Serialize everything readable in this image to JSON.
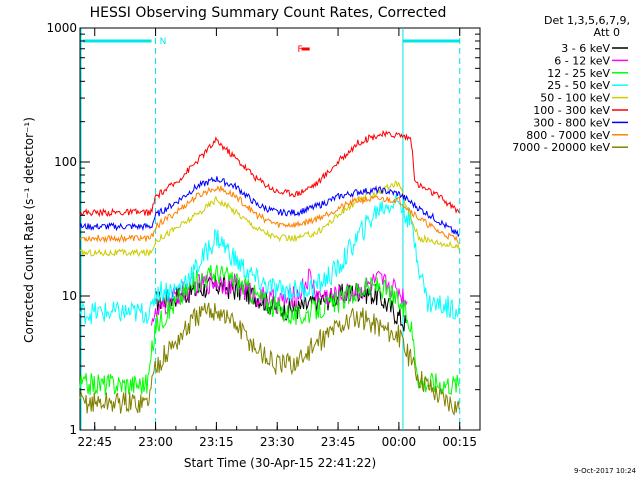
{
  "chart_data": {
    "type": "line",
    "title": "HESSI Observing Summary Count Rates, Corrected",
    "xlabel": "Start Time (30-Apr-15 22:41:22)",
    "ylabel": "Corrected Count Rate (s⁻¹ detector⁻¹)",
    "y_scale": "log",
    "ylim": [
      1,
      1000
    ],
    "xlim": [
      "22:41:22",
      "00:20:00"
    ],
    "grid": false,
    "legend_position": "right-outside",
    "x_ticks": [
      "22:45",
      "23:00",
      "23:15",
      "23:30",
      "23:45",
      "00:00",
      "00:15"
    ],
    "y_ticks": [
      "1",
      "10",
      "100",
      "1000"
    ],
    "legend_header": [
      "Det 1,3,5,6,7,9,",
      "Att 0"
    ],
    "annotations": [
      {
        "text": "N",
        "x": "23:01",
        "color": "#00e5e5"
      },
      {
        "text": "F",
        "x": "23:35",
        "color": "#ff0000"
      }
    ],
    "night_bars": [
      [
        "22:42",
        "22:59"
      ],
      [
        "00:01",
        "00:15"
      ]
    ],
    "flare_bar": [
      "23:36",
      "23:38"
    ],
    "vertical_lines": [
      {
        "x": "23:00",
        "style": "dashed"
      },
      {
        "x": "00:01",
        "style": "solid"
      },
      {
        "x": "00:15",
        "style": "dashed"
      }
    ],
    "series": [
      {
        "name": "3 - 6 keV",
        "color": "#000000",
        "points": [
          [
            "23:00",
            9
          ],
          [
            "23:05",
            10
          ],
          [
            "23:10",
            11
          ],
          [
            "23:15",
            12
          ],
          [
            "23:20",
            11
          ],
          [
            "23:25",
            10
          ],
          [
            "23:30",
            8
          ],
          [
            "23:35",
            8
          ],
          [
            "23:40",
            9
          ],
          [
            "23:45",
            10
          ],
          [
            "23:50",
            11
          ],
          [
            "23:55",
            10
          ],
          [
            "00:00",
            7
          ],
          [
            "00:02",
            6
          ]
        ]
      },
      {
        "name": "6 - 12 keV",
        "color": "#ff00ff",
        "points": [
          [
            "22:59",
            7
          ],
          [
            "23:00",
            7
          ],
          [
            "23:05",
            10
          ],
          [
            "23:10",
            12
          ],
          [
            "23:15",
            13
          ],
          [
            "23:20",
            12
          ],
          [
            "23:25",
            10
          ],
          [
            "23:30",
            9
          ],
          [
            "23:35",
            10
          ],
          [
            "23:38",
            14
          ],
          [
            "23:40",
            10
          ],
          [
            "23:45",
            10
          ],
          [
            "23:50",
            11
          ],
          [
            "23:55",
            13
          ],
          [
            "00:00",
            11
          ],
          [
            "00:02",
            9
          ]
        ]
      },
      {
        "name": "12 - 25 keV",
        "color": "#00ff00",
        "points": [
          [
            "22:41:22",
            2.2
          ],
          [
            "22:58",
            2.2
          ],
          [
            "23:00",
            6
          ],
          [
            "23:05",
            9
          ],
          [
            "23:10",
            13
          ],
          [
            "23:15",
            15
          ],
          [
            "23:20",
            13
          ],
          [
            "23:25",
            10
          ],
          [
            "23:30",
            8
          ],
          [
            "23:35",
            7
          ],
          [
            "23:40",
            8
          ],
          [
            "23:45",
            9
          ],
          [
            "23:50",
            11
          ],
          [
            "23:55",
            12
          ],
          [
            "00:00",
            9
          ],
          [
            "00:03",
            6
          ],
          [
            "00:05",
            2.3
          ],
          [
            "00:15",
            2.2
          ]
        ]
      },
      {
        "name": "25 - 50 keV",
        "color": "#00ffff",
        "points": [
          [
            "22:41:22",
            7.5
          ],
          [
            "22:59",
            7.5
          ],
          [
            "23:00",
            11
          ],
          [
            "23:05",
            11
          ],
          [
            "23:10",
            16
          ],
          [
            "23:15",
            28
          ],
          [
            "23:20",
            18
          ],
          [
            "23:25",
            13
          ],
          [
            "23:30",
            11
          ],
          [
            "23:35",
            11
          ],
          [
            "23:40",
            12
          ],
          [
            "23:45",
            16
          ],
          [
            "23:50",
            28
          ],
          [
            "23:55",
            45
          ],
          [
            "00:00",
            52
          ],
          [
            "00:03",
            35
          ],
          [
            "00:05",
            17
          ],
          [
            "00:07",
            9
          ],
          [
            "00:15",
            8
          ]
        ]
      },
      {
        "name": "50 - 100 keV",
        "color": "#cccc00",
        "points": [
          [
            "22:41:22",
            21
          ],
          [
            "22:59",
            21
          ],
          [
            "23:00",
            26
          ],
          [
            "23:05",
            32
          ],
          [
            "23:10",
            40
          ],
          [
            "23:15",
            53
          ],
          [
            "23:20",
            42
          ],
          [
            "23:25",
            32
          ],
          [
            "23:30",
            27
          ],
          [
            "23:35",
            27
          ],
          [
            "23:40",
            30
          ],
          [
            "23:45",
            40
          ],
          [
            "23:50",
            52
          ],
          [
            "23:55",
            60
          ],
          [
            "00:00",
            70
          ],
          [
            "00:02",
            45
          ],
          [
            "00:05",
            27
          ],
          [
            "00:10",
            25
          ],
          [
            "00:15",
            23
          ]
        ]
      },
      {
        "name": "100 - 300 keV",
        "color": "#ff0000",
        "points": [
          [
            "22:41:22",
            42
          ],
          [
            "22:59",
            42
          ],
          [
            "23:00",
            55
          ],
          [
            "23:05",
            70
          ],
          [
            "23:10",
            100
          ],
          [
            "23:15",
            145
          ],
          [
            "23:20",
            105
          ],
          [
            "23:25",
            75
          ],
          [
            "23:30",
            60
          ],
          [
            "23:35",
            58
          ],
          [
            "23:40",
            70
          ],
          [
            "23:45",
            100
          ],
          [
            "23:50",
            140
          ],
          [
            "23:55",
            160
          ],
          [
            "00:00",
            160
          ],
          [
            "00:03",
            150
          ],
          [
            "00:04",
            70
          ],
          [
            "00:10",
            55
          ],
          [
            "00:15",
            42
          ]
        ]
      },
      {
        "name": "300 - 800 keV",
        "color": "#0000ff",
        "points": [
          [
            "22:41:22",
            33
          ],
          [
            "22:59",
            33
          ],
          [
            "23:00",
            40
          ],
          [
            "23:05",
            50
          ],
          [
            "23:10",
            65
          ],
          [
            "23:15",
            75
          ],
          [
            "23:20",
            65
          ],
          [
            "23:25",
            48
          ],
          [
            "23:30",
            42
          ],
          [
            "23:35",
            42
          ],
          [
            "23:40",
            47
          ],
          [
            "23:45",
            55
          ],
          [
            "23:50",
            60
          ],
          [
            "23:55",
            62
          ],
          [
            "00:00",
            58
          ],
          [
            "00:05",
            45
          ],
          [
            "00:10",
            36
          ],
          [
            "00:15",
            28
          ]
        ]
      },
      {
        "name": "800 - 7000 keV",
        "color": "#ff8000",
        "points": [
          [
            "22:41:22",
            27
          ],
          [
            "22:59",
            27
          ],
          [
            "23:00",
            33
          ],
          [
            "23:05",
            42
          ],
          [
            "23:10",
            55
          ],
          [
            "23:15",
            65
          ],
          [
            "23:20",
            55
          ],
          [
            "23:25",
            40
          ],
          [
            "23:30",
            34
          ],
          [
            "23:35",
            34
          ],
          [
            "23:40",
            38
          ],
          [
            "23:45",
            45
          ],
          [
            "23:50",
            52
          ],
          [
            "23:55",
            53
          ],
          [
            "00:00",
            52
          ],
          [
            "00:05",
            38
          ],
          [
            "00:10",
            30
          ],
          [
            "00:15",
            26
          ]
        ]
      },
      {
        "name": "7000 - 20000 keV",
        "color": "#808000",
        "points": [
          [
            "22:41:22",
            1.6
          ],
          [
            "22:58",
            1.6
          ],
          [
            "23:00",
            3
          ],
          [
            "23:05",
            4.5
          ],
          [
            "23:10",
            7
          ],
          [
            "23:15",
            8
          ],
          [
            "23:20",
            6
          ],
          [
            "23:25",
            4
          ],
          [
            "23:30",
            3
          ],
          [
            "23:35",
            3.2
          ],
          [
            "23:40",
            4.5
          ],
          [
            "23:45",
            6
          ],
          [
            "23:50",
            7
          ],
          [
            "23:55",
            6
          ],
          [
            "00:00",
            5
          ],
          [
            "00:05",
            2.5
          ],
          [
            "00:10",
            1.8
          ],
          [
            "00:15",
            1.5
          ]
        ]
      }
    ]
  },
  "footer_date": "9-Oct-2017 10:24"
}
